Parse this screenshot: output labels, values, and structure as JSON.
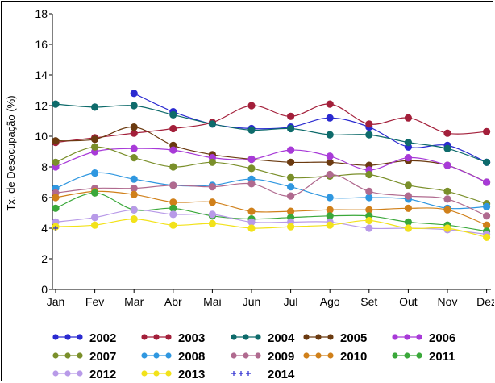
{
  "chart_data": {
    "type": "line",
    "ylabel": "Tx. de Desocupação (%)",
    "xlabel": "",
    "ylim": [
      0,
      18
    ],
    "yticks": [
      0,
      2,
      4,
      6,
      8,
      10,
      12,
      14,
      16,
      18
    ],
    "categories": [
      "Jan",
      "Fev",
      "Mar",
      "Abr",
      "Mai",
      "Jun",
      "Jul",
      "Ago",
      "Set",
      "Out",
      "Nov",
      "Dez"
    ],
    "grid": false,
    "legend_position": "bottom",
    "series": [
      {
        "name": "2002",
        "color": "#2a2ad0",
        "marker": "dot",
        "values": [
          null,
          null,
          12.8,
          11.6,
          10.8,
          10.5,
          10.6,
          11.2,
          10.6,
          9.3,
          9.4,
          8.3
        ]
      },
      {
        "name": "2003",
        "color": "#a31f3a",
        "marker": "dot",
        "values": [
          9.6,
          9.9,
          10.2,
          10.5,
          10.9,
          12.0,
          11.3,
          12.1,
          10.8,
          11.2,
          10.2,
          10.3
        ]
      },
      {
        "name": "2004",
        "color": "#0e6b6b",
        "marker": "dot",
        "values": [
          12.1,
          11.9,
          12.0,
          11.4,
          10.8,
          10.4,
          10.5,
          10.1,
          10.1,
          9.6,
          9.2,
          8.3
        ]
      },
      {
        "name": "2005",
        "color": "#6b3a10",
        "marker": "dot",
        "values": [
          9.7,
          9.8,
          10.6,
          9.4,
          8.8,
          8.5,
          8.3,
          8.3,
          8.1,
          8.4,
          8.1,
          7.0
        ]
      },
      {
        "name": "2006",
        "color": "#a83ad8",
        "marker": "dot",
        "values": [
          8.0,
          9.0,
          9.2,
          9.1,
          8.6,
          8.5,
          9.1,
          8.7,
          7.8,
          8.6,
          8.1,
          7.0
        ]
      },
      {
        "name": "2007",
        "color": "#7a8f2a",
        "marker": "dot",
        "values": [
          8.3,
          9.3,
          8.6,
          8.0,
          8.3,
          7.9,
          7.3,
          7.4,
          7.5,
          6.8,
          6.4,
          5.6
        ]
      },
      {
        "name": "2008",
        "color": "#2f97e0",
        "marker": "dot",
        "values": [
          6.6,
          7.6,
          7.2,
          6.8,
          6.8,
          7.2,
          6.7,
          6.0,
          6.0,
          5.9,
          5.3,
          5.4
        ]
      },
      {
        "name": "2009",
        "color": "#b06a8f",
        "marker": "dot",
        "values": [
          6.3,
          6.6,
          6.6,
          6.8,
          6.7,
          6.9,
          6.1,
          7.5,
          6.4,
          6.1,
          5.9,
          4.8
        ]
      },
      {
        "name": "2010",
        "color": "#d0801a",
        "marker": "dot",
        "values": [
          6.0,
          6.4,
          6.2,
          5.7,
          5.7,
          5.1,
          5.1,
          5.2,
          5.2,
          5.3,
          5.2,
          4.2
        ]
      },
      {
        "name": "2011",
        "color": "#3aa83a",
        "marker": "dot",
        "values": [
          5.3,
          6.3,
          5.2,
          5.3,
          4.8,
          4.6,
          4.7,
          4.8,
          4.8,
          4.4,
          4.2,
          3.8
        ]
      },
      {
        "name": "2012",
        "color": "#b89ae8",
        "marker": "dot",
        "values": [
          4.4,
          4.7,
          5.2,
          4.9,
          4.9,
          4.4,
          4.4,
          4.4,
          4.0,
          4.0,
          3.9,
          3.6
        ]
      },
      {
        "name": "2013",
        "color": "#f2e21a",
        "marker": "dot",
        "values": [
          4.1,
          4.2,
          4.6,
          4.2,
          4.3,
          4.0,
          4.1,
          4.2,
          4.5,
          4.0,
          4.0,
          3.4
        ]
      },
      {
        "name": "2014",
        "color": "#2a2ad0",
        "marker": "plus",
        "values": [
          4.0,
          null,
          null,
          null,
          null,
          null,
          null,
          null,
          null,
          null,
          null,
          null
        ]
      }
    ]
  }
}
